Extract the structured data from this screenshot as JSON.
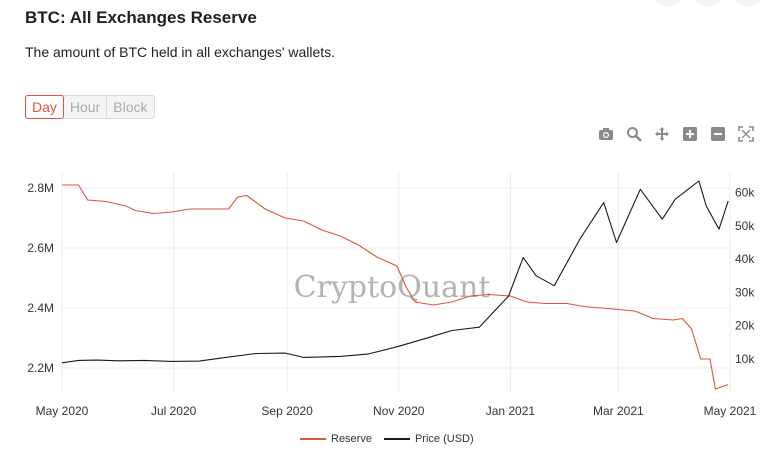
{
  "header": {
    "title": "BTC: All Exchanges Reserve",
    "subtitle": "The amount of BTC held in all exchanges' wallets."
  },
  "resolution_tabs": [
    {
      "label": "Day",
      "active": true
    },
    {
      "label": "Hour",
      "active": false
    },
    {
      "label": "Block",
      "active": false
    }
  ],
  "toolbar_icons": [
    "camera-icon",
    "zoom-icon",
    "pan-icon",
    "zoom-in-icon",
    "zoom-out-icon",
    "reset-axes-icon"
  ],
  "watermark": "CryptoQuant",
  "colors": {
    "reserve": "#e0533c",
    "price": "#1a1a1a"
  },
  "chart_data": {
    "type": "line",
    "x_ticks": [
      "May 2020",
      "Jul 2020",
      "Sep 2020",
      "Nov 2020",
      "Jan 2021",
      "Mar 2021",
      "May 2021"
    ],
    "y_left_ticks": [
      "2.2M",
      "2.4M",
      "2.6M",
      "2.8M"
    ],
    "y_right_ticks": [
      "10k",
      "20k",
      "30k",
      "40k",
      "50k",
      "60k"
    ],
    "y_left_range": [
      2120000,
      2840000
    ],
    "y_right_range": [
      0,
      65000
    ],
    "legend_position": "bottom-center",
    "grid": true,
    "series": [
      {
        "name": "Reserve",
        "axis": "left",
        "points": [
          [
            "2020-05-01",
            2810000
          ],
          [
            "2020-05-10",
            2810000
          ],
          [
            "2020-05-15",
            2760000
          ],
          [
            "2020-05-25",
            2755000
          ],
          [
            "2020-06-05",
            2740000
          ],
          [
            "2020-06-10",
            2725000
          ],
          [
            "2020-06-20",
            2715000
          ],
          [
            "2020-06-30",
            2720000
          ],
          [
            "2020-07-10",
            2730000
          ],
          [
            "2020-07-20",
            2730000
          ],
          [
            "2020-07-31",
            2730000
          ],
          [
            "2020-08-05",
            2770000
          ],
          [
            "2020-08-10",
            2775000
          ],
          [
            "2020-08-20",
            2730000
          ],
          [
            "2020-08-31",
            2700000
          ],
          [
            "2020-09-10",
            2690000
          ],
          [
            "2020-09-20",
            2660000
          ],
          [
            "2020-09-30",
            2640000
          ],
          [
            "2020-10-10",
            2610000
          ],
          [
            "2020-10-20",
            2570000
          ],
          [
            "2020-10-31",
            2540000
          ],
          [
            "2020-11-05",
            2470000
          ],
          [
            "2020-11-10",
            2420000
          ],
          [
            "2020-11-20",
            2410000
          ],
          [
            "2020-11-30",
            2420000
          ],
          [
            "2020-12-10",
            2440000
          ],
          [
            "2020-12-20",
            2445000
          ],
          [
            "2021-01-01",
            2440000
          ],
          [
            "2021-01-10",
            2420000
          ],
          [
            "2021-01-20",
            2415000
          ],
          [
            "2021-02-01",
            2415000
          ],
          [
            "2021-02-10",
            2405000
          ],
          [
            "2021-02-20",
            2400000
          ],
          [
            "2021-03-01",
            2395000
          ],
          [
            "2021-03-10",
            2390000
          ],
          [
            "2021-03-20",
            2365000
          ],
          [
            "2021-03-31",
            2360000
          ],
          [
            "2021-04-05",
            2365000
          ],
          [
            "2021-04-10",
            2330000
          ],
          [
            "2021-04-15",
            2230000
          ],
          [
            "2021-04-20",
            2230000
          ],
          [
            "2021-04-23",
            2130000
          ],
          [
            "2021-04-30",
            2145000
          ]
        ]
      },
      {
        "name": "Price (USD)",
        "axis": "right",
        "points": [
          [
            "2020-05-01",
            8800
          ],
          [
            "2020-05-10",
            9500
          ],
          [
            "2020-05-20",
            9600
          ],
          [
            "2020-06-01",
            9400
          ],
          [
            "2020-06-15",
            9500
          ],
          [
            "2020-06-30",
            9200
          ],
          [
            "2020-07-15",
            9300
          ],
          [
            "2020-07-31",
            10500
          ],
          [
            "2020-08-15",
            11600
          ],
          [
            "2020-08-31",
            11700
          ],
          [
            "2020-09-10",
            10400
          ],
          [
            "2020-09-30",
            10700
          ],
          [
            "2020-10-15",
            11400
          ],
          [
            "2020-10-31",
            13600
          ],
          [
            "2020-11-15",
            16000
          ],
          [
            "2020-11-30",
            18500
          ],
          [
            "2020-12-15",
            19500
          ],
          [
            "2020-12-31",
            28900
          ],
          [
            "2021-01-08",
            40500
          ],
          [
            "2021-01-15",
            35000
          ],
          [
            "2021-01-25",
            32000
          ],
          [
            "2021-02-08",
            46000
          ],
          [
            "2021-02-21",
            57000
          ],
          [
            "2021-02-28",
            45000
          ],
          [
            "2021-03-13",
            61000
          ],
          [
            "2021-03-25",
            52000
          ],
          [
            "2021-04-01",
            58000
          ],
          [
            "2021-04-14",
            63500
          ],
          [
            "2021-04-18",
            56000
          ],
          [
            "2021-04-25",
            49000
          ],
          [
            "2021-04-30",
            57500
          ]
        ]
      }
    ]
  }
}
